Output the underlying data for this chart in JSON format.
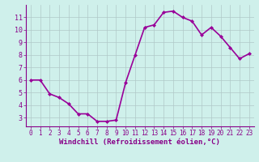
{
  "x": [
    0,
    1,
    2,
    3,
    4,
    5,
    6,
    7,
    8,
    9,
    10,
    11,
    12,
    13,
    14,
    15,
    16,
    17,
    18,
    19,
    20,
    21,
    22,
    23
  ],
  "y": [
    6.0,
    6.0,
    4.9,
    4.6,
    4.1,
    3.3,
    3.3,
    2.7,
    2.7,
    2.8,
    5.8,
    8.0,
    10.2,
    10.4,
    11.4,
    11.5,
    11.0,
    10.7,
    9.6,
    10.2,
    9.5,
    8.6,
    7.7,
    8.1
  ],
  "line_color": "#990099",
  "marker": "D",
  "marker_size": 2.0,
  "background_color": "#cff0eb",
  "grid_color": "#b0c8c8",
  "xlabel": "Windchill (Refroidissement éolien,°C)",
  "xlabel_color": "#880088",
  "tick_color": "#880088",
  "ylim": [
    2.3,
    12.0
  ],
  "xlim": [
    -0.5,
    23.5
  ],
  "yticks": [
    3,
    4,
    5,
    6,
    7,
    8,
    9,
    10,
    11
  ],
  "xticks": [
    0,
    1,
    2,
    3,
    4,
    5,
    6,
    7,
    8,
    9,
    10,
    11,
    12,
    13,
    14,
    15,
    16,
    17,
    18,
    19,
    20,
    21,
    22,
    23
  ],
  "spine_color": "#880088",
  "line_width": 1.2,
  "tick_fontsize": 5.5,
  "xlabel_fontsize": 6.5
}
